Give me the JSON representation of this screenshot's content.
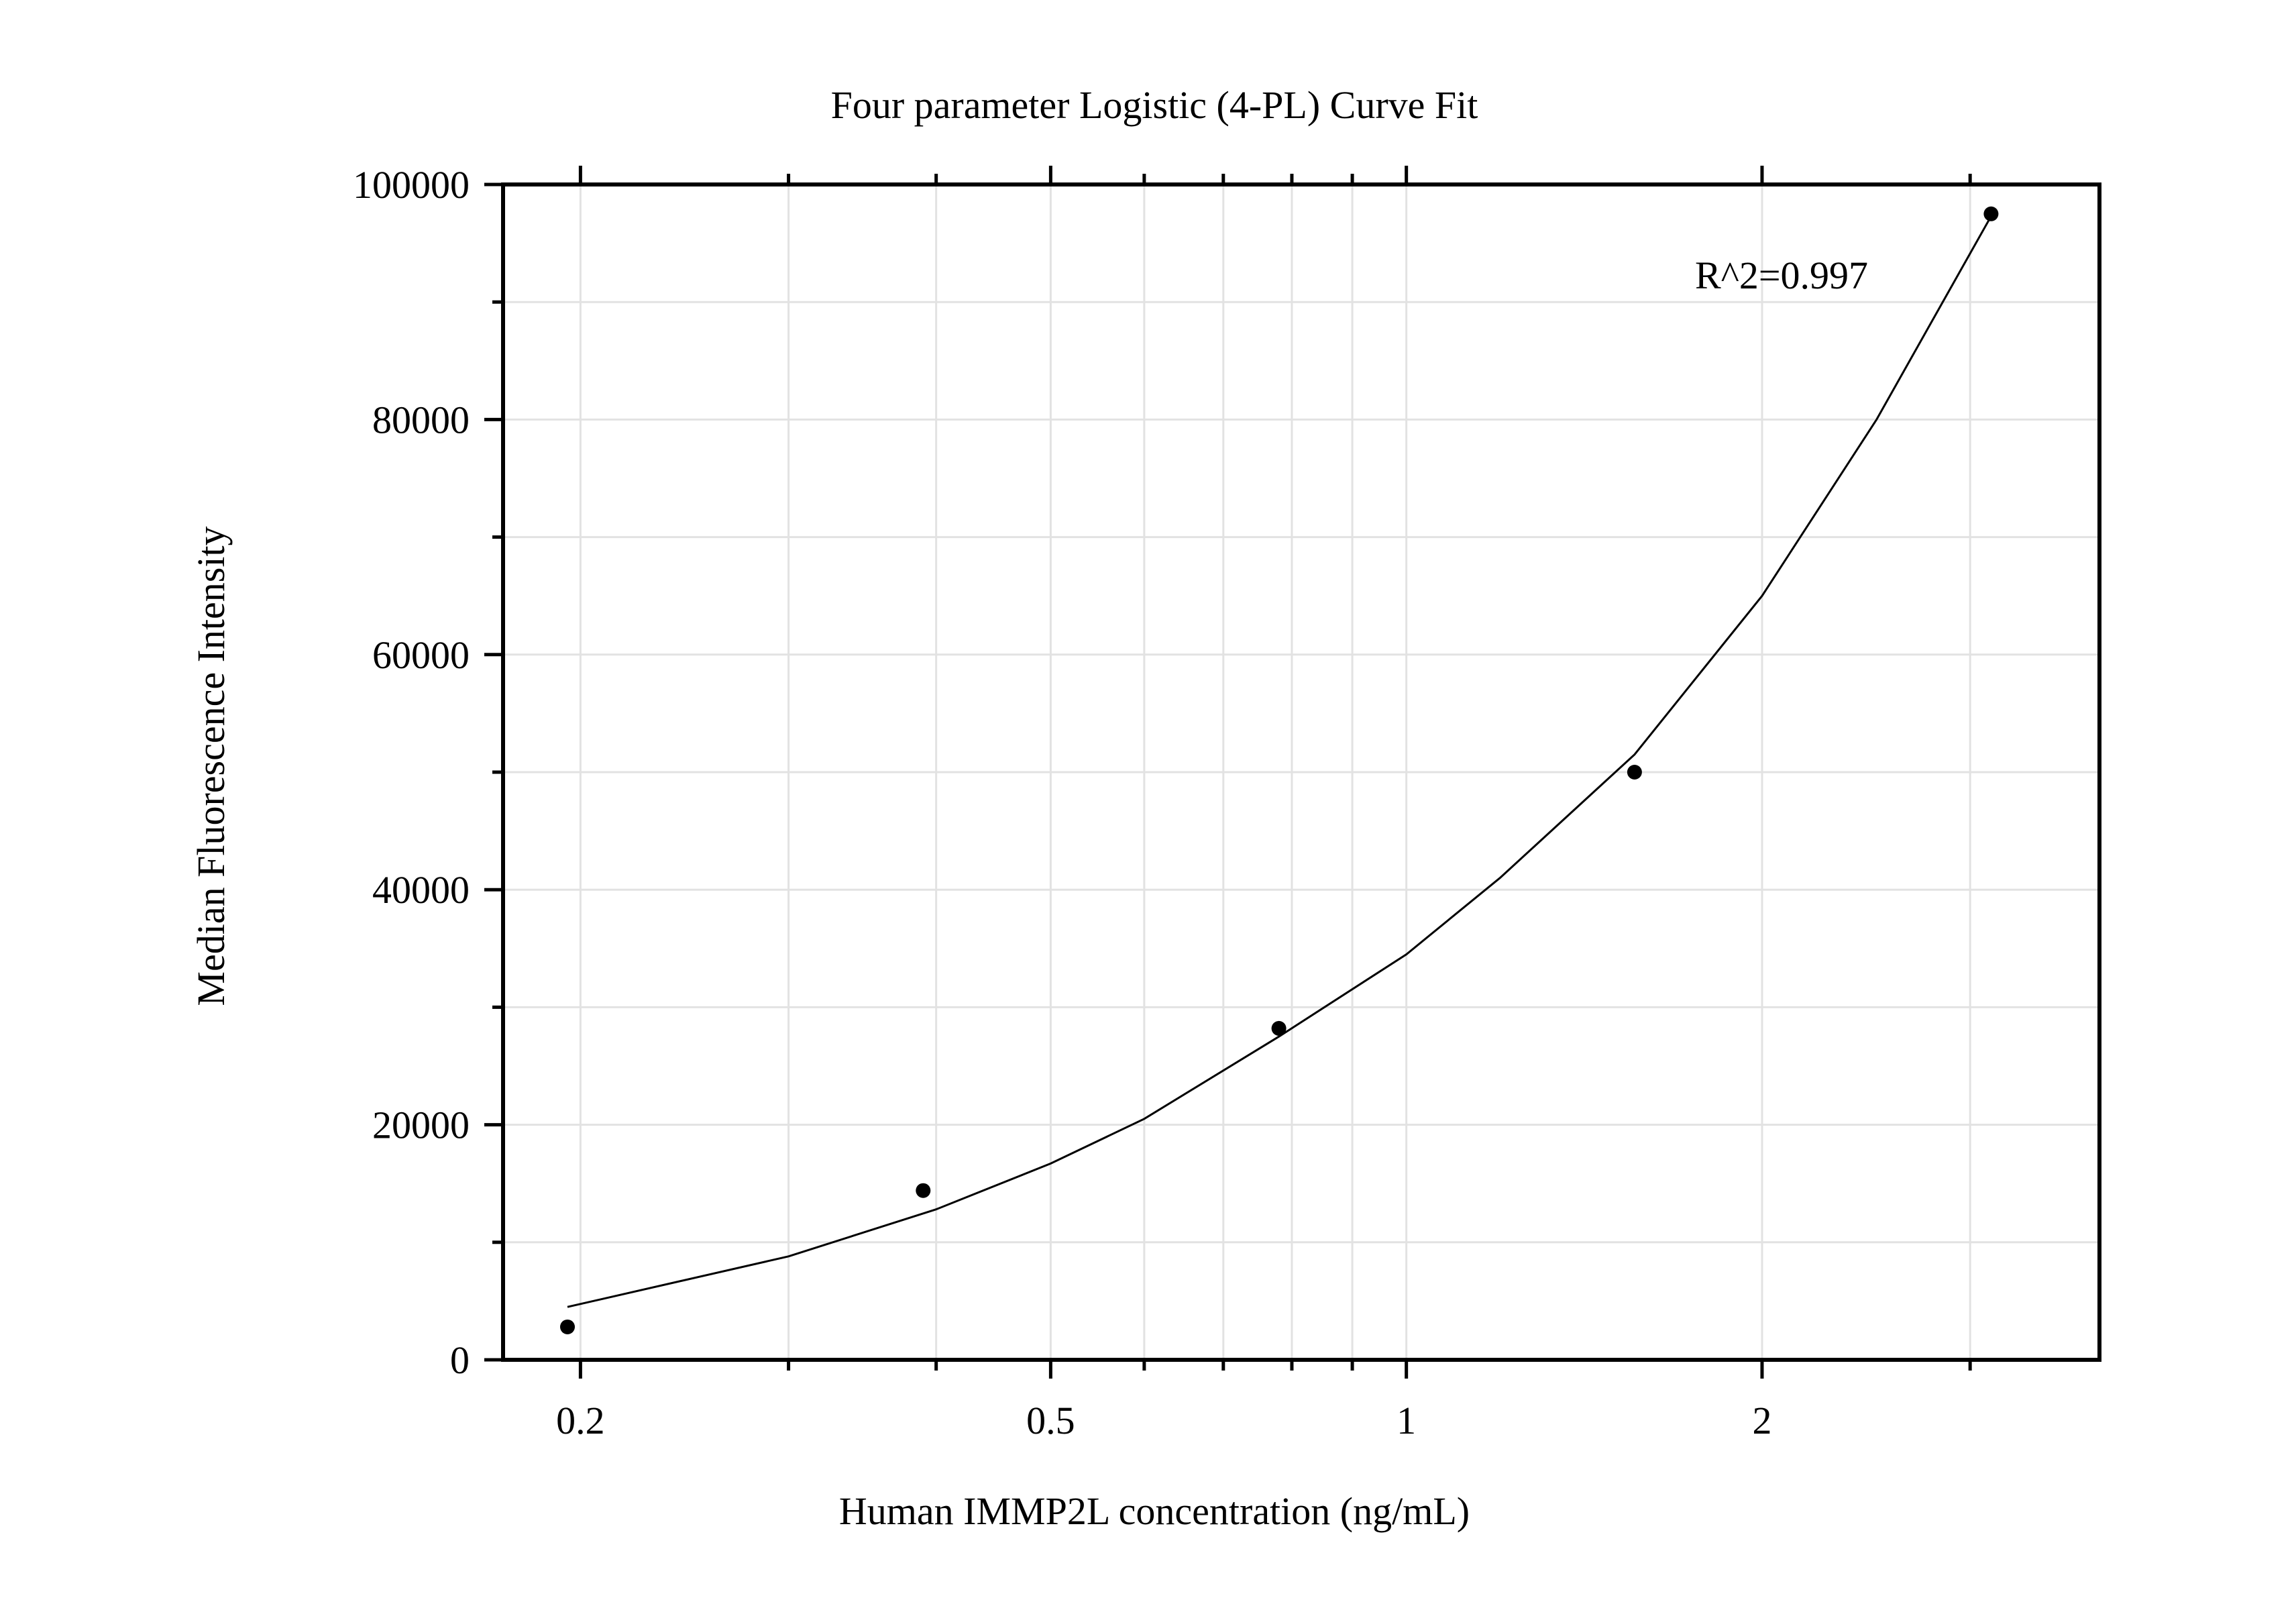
{
  "chart_data": {
    "type": "scatter",
    "title": "Four parameter Logistic (4-PL) Curve Fit",
    "xlabel": "Human IMMP2L concentration (ng/mL)",
    "ylabel": "Median Fluorescence Intensity",
    "x_scale": "log",
    "xlim": [
      0.172,
      3.86
    ],
    "ylim": [
      0,
      100000
    ],
    "grid": true,
    "x_ticks": [
      {
        "value": 0.2,
        "label": "0.2"
      },
      {
        "value": 0.5,
        "label": "0.5"
      },
      {
        "value": 1,
        "label": "1"
      },
      {
        "value": 2,
        "label": "2"
      }
    ],
    "y_ticks": [
      {
        "value": 0,
        "label": "0"
      },
      {
        "value": 20000,
        "label": "20000"
      },
      {
        "value": 40000,
        "label": "40000"
      },
      {
        "value": 60000,
        "label": "60000"
      },
      {
        "value": 80000,
        "label": "80000"
      },
      {
        "value": 100000,
        "label": "100000"
      }
    ],
    "annotation": "R^2=0.997",
    "points": [
      {
        "x": 0.195,
        "y": 2800
      },
      {
        "x": 0.39,
        "y": 14400
      },
      {
        "x": 0.78,
        "y": 28200
      },
      {
        "x": 1.56,
        "y": 50000
      },
      {
        "x": 3.125,
        "y": 97500
      }
    ],
    "fit_curve": [
      {
        "x": 0.195,
        "y": 4500
      },
      {
        "x": 0.3,
        "y": 8800
      },
      {
        "x": 0.4,
        "y": 12800
      },
      {
        "x": 0.5,
        "y": 16700
      },
      {
        "x": 0.6,
        "y": 20500
      },
      {
        "x": 0.78,
        "y": 27500
      },
      {
        "x": 1.0,
        "y": 34500
      },
      {
        "x": 1.2,
        "y": 41000
      },
      {
        "x": 1.56,
        "y": 51500
      },
      {
        "x": 2.0,
        "y": 65000
      },
      {
        "x": 2.5,
        "y": 80000
      },
      {
        "x": 3.125,
        "y": 97300
      }
    ]
  }
}
